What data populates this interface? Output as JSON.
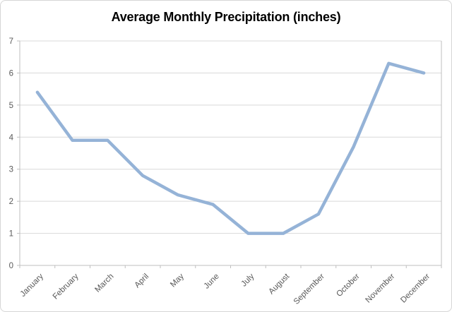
{
  "chart_data": {
    "type": "line",
    "title": "Average Monthly Precipitation (inches)",
    "categories": [
      "January",
      "February",
      "March",
      "April",
      "May",
      "June",
      "July",
      "August",
      "September",
      "October",
      "November",
      "December"
    ],
    "values": [
      5.4,
      3.9,
      3.9,
      2.8,
      2.2,
      1.9,
      1.0,
      1.0,
      1.6,
      3.7,
      6.3,
      6.0
    ],
    "xlabel": "",
    "ylabel": "",
    "ylim": [
      0,
      7
    ],
    "y_ticks": [
      0,
      1,
      2,
      3,
      4,
      5,
      6,
      7
    ],
    "grid": true,
    "legend": false,
    "line_color": "#95b3d7",
    "gridline_color": "#d9d9d9",
    "axis_color": "#bfbfbf",
    "tick_label_color": "#595959",
    "title_color": "#000000",
    "background_color": "#ffffff",
    "frame_border_color": "#d6d6d6"
  }
}
